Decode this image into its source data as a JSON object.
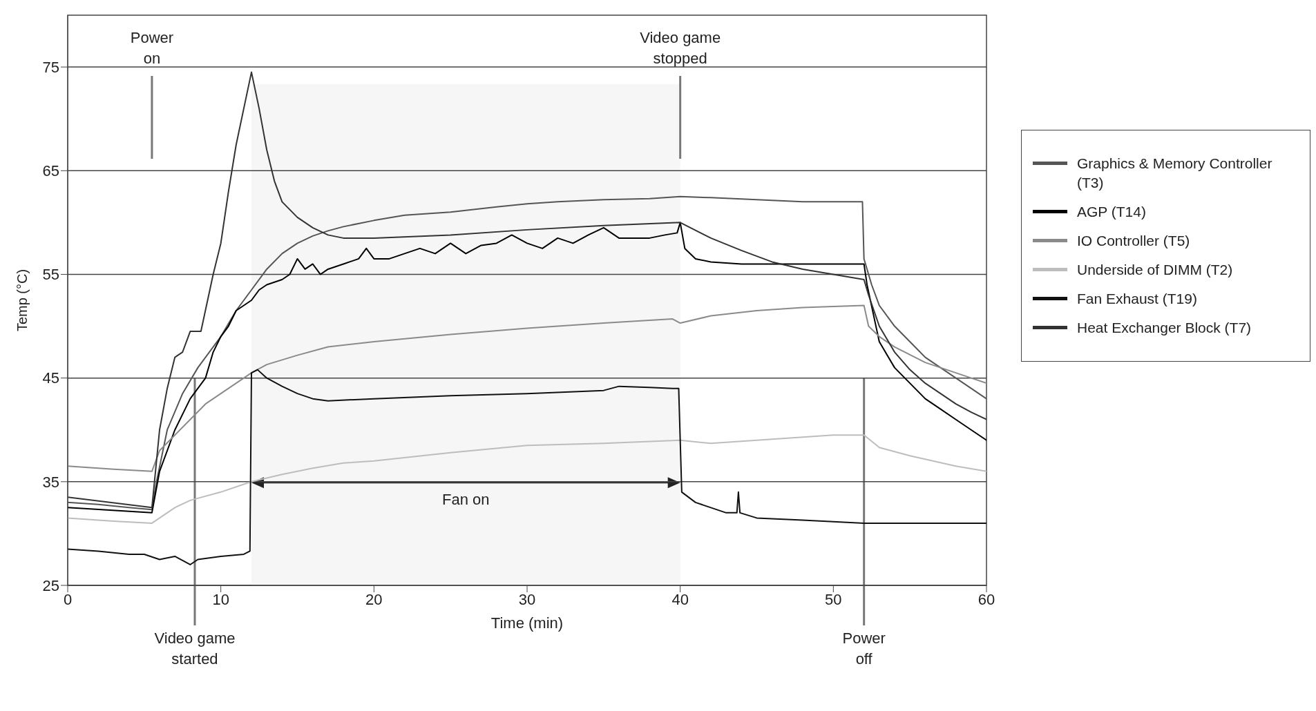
{
  "chart_data": {
    "type": "line",
    "xlabel": "Time (min)",
    "ylabel": "Temp (°C)",
    "xlim": [
      0,
      60
    ],
    "xticks": [
      0,
      10,
      20,
      30,
      40,
      50,
      60
    ],
    "ylim": [
      25,
      80
    ],
    "yticks": [
      25,
      35,
      45,
      55,
      65,
      75
    ],
    "grid": "y",
    "legend": "right",
    "line_style": "solid",
    "marker": "none",
    "series": [
      {
        "name": "Graphics & Memory Controller (T3)",
        "color": "#555555",
        "x": [
          0,
          2,
          4,
          5.5,
          5.8,
          6.5,
          7.5,
          8.5,
          10,
          11,
          12,
          13,
          14,
          15,
          16,
          17,
          18,
          20,
          22,
          25,
          28,
          30,
          32,
          35,
          38,
          40,
          42,
          45,
          48,
          50,
          51.9,
          52,
          52.5,
          53,
          54,
          55,
          56,
          57,
          58,
          59,
          60
        ],
        "values": [
          33,
          32.8,
          32.5,
          32.3,
          35,
          40,
          43.5,
          46,
          49,
          51.5,
          53.5,
          55.5,
          57,
          58,
          58.7,
          59.2,
          59.6,
          60.2,
          60.7,
          61,
          61.5,
          61.8,
          62,
          62.2,
          62.3,
          62.5,
          62.4,
          62.2,
          62,
          62,
          62,
          56.5,
          54,
          52,
          50,
          48.5,
          47,
          46,
          45,
          44,
          43
        ]
      },
      {
        "name": "AGP (T14)",
        "color": "#000000",
        "x": [
          0,
          5.5,
          6,
          7,
          8,
          9,
          9.5,
          10,
          10.5,
          11,
          11.5,
          12,
          12.5,
          13,
          14,
          14.5,
          15,
          15.5,
          16,
          16.5,
          17,
          18,
          19,
          19.5,
          20,
          21,
          22,
          23,
          24,
          25,
          26,
          27,
          28,
          29,
          30,
          31,
          32,
          33,
          34,
          35,
          36,
          37,
          38,
          39,
          39.8,
          40,
          40.3,
          41,
          42,
          44,
          48,
          52,
          52.2,
          53,
          54,
          55,
          56,
          57,
          58,
          59,
          60
        ],
        "values": [
          32.5,
          32,
          36,
          40,
          43,
          45,
          47.5,
          49,
          50,
          51.5,
          52,
          52.5,
          53.5,
          54,
          54.5,
          55,
          56.5,
          55.5,
          56,
          55,
          55.5,
          56,
          56.5,
          57.5,
          56.5,
          56.5,
          57,
          57.5,
          57,
          58,
          57,
          57.8,
          58,
          58.8,
          58,
          57.5,
          58.5,
          58,
          58.8,
          59.5,
          58.5,
          58.5,
          58.5,
          58.8,
          59,
          60,
          57.5,
          56.5,
          56.2,
          56,
          56,
          56,
          54,
          48.5,
          46,
          44.5,
          43,
          42,
          41,
          40,
          39
        ]
      },
      {
        "name": "IO Controller (T5)",
        "color": "#8a8a8a",
        "x": [
          0,
          3,
          5.5,
          6,
          7,
          8,
          9,
          10,
          11,
          12,
          13,
          15,
          17,
          20,
          25,
          30,
          35,
          39.5,
          40,
          42,
          45,
          48,
          52,
          52.3,
          53,
          54,
          56,
          58,
          60
        ],
        "values": [
          36.5,
          36.2,
          36,
          38,
          39.5,
          41,
          42.5,
          43.5,
          44.5,
          45.5,
          46.3,
          47.2,
          48,
          48.5,
          49.2,
          49.8,
          50.3,
          50.7,
          50.3,
          51,
          51.5,
          51.8,
          52,
          50,
          49,
          48,
          46.5,
          45.5,
          44.5
        ]
      },
      {
        "name": "Underside of DIMM (T2)",
        "color": "#bdbdbd",
        "x": [
          0,
          3,
          5.5,
          6,
          7,
          8,
          10,
          12,
          14,
          16,
          18,
          20,
          25,
          30,
          35,
          40,
          42,
          45,
          50,
          52,
          53,
          55,
          58,
          60
        ],
        "values": [
          31.5,
          31.2,
          31,
          31.5,
          32.5,
          33.2,
          34,
          35,
          35.7,
          36.3,
          36.8,
          37,
          37.8,
          38.5,
          38.7,
          39,
          38.7,
          39,
          39.5,
          39.5,
          38.3,
          37.5,
          36.5,
          36
        ]
      },
      {
        "name": "Fan Exhaust (T19)",
        "color": "#111111",
        "x": [
          0,
          2,
          4,
          5,
          6,
          7,
          8,
          8.5,
          10,
          11.5,
          11.9,
          12,
          12.4,
          13,
          14,
          15,
          16,
          17,
          20,
          25,
          30,
          35,
          36,
          38,
          39.5,
          39.9,
          40.1,
          41,
          42,
          43,
          43.7,
          43.8,
          43.9,
          45,
          48,
          52,
          55,
          58,
          60
        ],
        "values": [
          28.5,
          28.3,
          28,
          28,
          27.5,
          27.8,
          27,
          27.5,
          27.8,
          28,
          28.3,
          45.5,
          45.8,
          45,
          44.2,
          43.5,
          43,
          42.8,
          43,
          43.3,
          43.5,
          43.8,
          44.2,
          44.1,
          44,
          44,
          34,
          33,
          32.5,
          32,
          32,
          34,
          32,
          31.5,
          31.3,
          31,
          31,
          31,
          31
        ]
      },
      {
        "name": "Heat Exchanger Block (T7)",
        "color": "#333333",
        "x": [
          0,
          5.5,
          6,
          6.5,
          7,
          7.5,
          8,
          8.7,
          9.5,
          10,
          10.5,
          11,
          11.5,
          12,
          12.5,
          13,
          13.5,
          14,
          15,
          16,
          17,
          18,
          20,
          25,
          30,
          35,
          40,
          42,
          44,
          46,
          48,
          50,
          52,
          52.3,
          53,
          54,
          55,
          56,
          57,
          58,
          59,
          60
        ],
        "values": [
          33.5,
          32.5,
          40,
          44,
          47,
          47.5,
          49.5,
          49.5,
          55,
          58,
          63,
          67.5,
          71,
          74.5,
          71,
          67,
          64,
          62,
          60.5,
          59.5,
          58.8,
          58.5,
          58.5,
          58.8,
          59.3,
          59.7,
          60,
          58.5,
          57.3,
          56.2,
          55.5,
          55,
          54.5,
          53,
          50,
          47.5,
          45.8,
          44.5,
          43.5,
          42.5,
          41.7,
          41
        ]
      }
    ],
    "ref_lines": [
      {
        "axis": "x",
        "value": 5.5,
        "label": "Power on",
        "color": "#777777"
      },
      {
        "axis": "x",
        "value": 8.3,
        "label": "Video game started",
        "color": "#777777"
      },
      {
        "axis": "x",
        "value": 40,
        "label": "Video game stopped",
        "color": "#777777"
      },
      {
        "axis": "x",
        "value": 52,
        "label": "Power off",
        "color": "#777777"
      }
    ],
    "bands": [
      {
        "axis": "x",
        "from": 12,
        "to": 40,
        "label": "Fan on",
        "color": "#f6f6f6"
      }
    ]
  }
}
